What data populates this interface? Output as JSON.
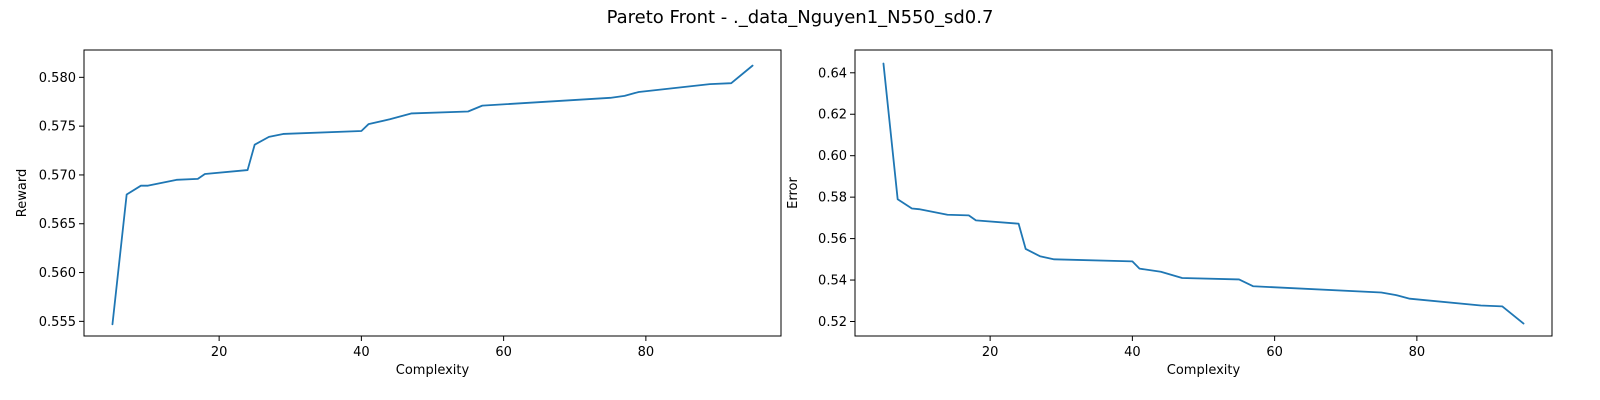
{
  "figure": {
    "suptitle": "Pareto Front - ._data_Nguyen1_N550_sd0.7"
  },
  "colors": {
    "line": "#1f77b4",
    "background": "#ffffff",
    "axes": "#000000"
  },
  "chart_data": [
    {
      "type": "line",
      "title": "",
      "xlabel": "Complexity",
      "ylabel": "Reward",
      "xlim": [
        1,
        99
      ],
      "ylim": [
        0.5535,
        0.5828
      ],
      "xticks": [
        20,
        40,
        60,
        80
      ],
      "yticks": [
        0.555,
        0.56,
        0.565,
        0.57,
        0.575,
        0.58
      ],
      "yticklabels": [
        "0.555",
        "0.560",
        "0.565",
        "0.570",
        "0.575",
        "0.580"
      ],
      "grid": false,
      "series": [
        {
          "x": [
            5,
            7,
            9,
            10,
            14,
            17,
            18,
            24,
            25,
            27,
            29,
            40,
            41,
            44,
            47,
            55,
            57,
            75,
            77,
            79,
            89,
            92,
            95
          ],
          "y": [
            0.5547,
            0.568,
            0.5689,
            0.5689,
            0.5695,
            0.5696,
            0.5701,
            0.5705,
            0.5731,
            0.5739,
            0.5742,
            0.5745,
            0.5752,
            0.5757,
            0.5763,
            0.5765,
            0.5771,
            0.5779,
            0.5781,
            0.5785,
            0.5793,
            0.5794,
            0.5812
          ]
        }
      ]
    },
    {
      "type": "line",
      "title": "",
      "xlabel": "Complexity",
      "ylabel": "Error",
      "xlim": [
        1,
        99
      ],
      "ylim": [
        0.513,
        0.651
      ],
      "xticks": [
        20,
        40,
        60,
        80
      ],
      "yticks": [
        0.52,
        0.54,
        0.56,
        0.58,
        0.6,
        0.62,
        0.64
      ],
      "yticklabels": [
        "0.52",
        "0.54",
        "0.56",
        "0.58",
        "0.60",
        "0.62",
        "0.64"
      ],
      "grid": false,
      "series": [
        {
          "x": [
            5,
            7,
            9,
            10,
            14,
            17,
            18,
            24,
            25,
            27,
            29,
            40,
            41,
            44,
            47,
            55,
            57,
            75,
            77,
            79,
            89,
            92,
            95
          ],
          "y": [
            0.6445,
            0.579,
            0.5745,
            0.5742,
            0.5715,
            0.5712,
            0.5688,
            0.5672,
            0.555,
            0.5515,
            0.55,
            0.549,
            0.5455,
            0.544,
            0.541,
            0.5403,
            0.537,
            0.534,
            0.5328,
            0.531,
            0.5277,
            0.5273,
            0.519
          ]
        }
      ]
    }
  ]
}
